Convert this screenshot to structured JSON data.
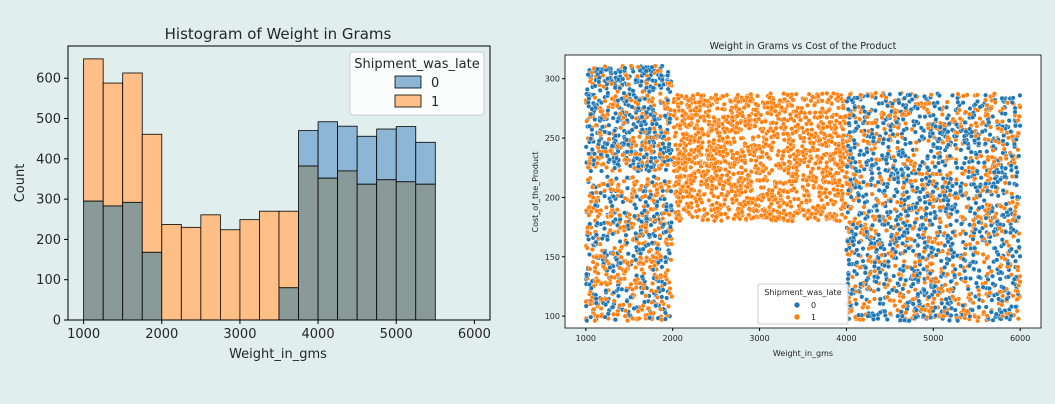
{
  "colors": {
    "class0": "#1f77b4",
    "class1": "#ff7f0e",
    "hist_class0_fill": "#8db5d6",
    "hist_class1_fill": "#ffbf86",
    "hist_overlap_fill": "#8a9a99",
    "background": "#e0eeee"
  },
  "chart_data": [
    {
      "type": "bar",
      "subtype": "histogram-overlaid",
      "title": "Histogram of Weight in Grams",
      "xlabel": "Weight_in_gms",
      "ylabel": "Count",
      "xlim": [
        800,
        6200
      ],
      "ylim": [
        0,
        680
      ],
      "xticks": [
        1000,
        2000,
        3000,
        4000,
        5000,
        6000
      ],
      "yticks": [
        0,
        100,
        200,
        300,
        400,
        500,
        600
      ],
      "legend": {
        "title": "Shipment_was_late",
        "entries": [
          "0",
          "1"
        ],
        "position": "upper-right"
      },
      "bin_edges": [
        1000,
        1250,
        1500,
        1750,
        2000,
        2250,
        2500,
        2750,
        3000,
        3250,
        3500,
        3750,
        4000,
        4250,
        4500,
        4750,
        5000,
        5250,
        5500,
        5750,
        6000
      ],
      "series": [
        {
          "name": "0",
          "values": [
            295,
            283,
            292,
            168,
            0,
            0,
            0,
            0,
            0,
            0,
            80,
            470,
            492,
            481,
            456,
            474,
            480,
            441,
            0,
            0
          ]
        },
        {
          "name": "1",
          "values": [
            648,
            588,
            613,
            461,
            237,
            230,
            261,
            224,
            249,
            270,
            270,
            382,
            352,
            370,
            337,
            348,
            343,
            337,
            0,
            0
          ]
        }
      ],
      "grid": false
    },
    {
      "type": "scatter",
      "title": "Weight in Grams vs Cost of the Product",
      "xlabel": "Weight_in_gms",
      "ylabel": "Cost_of_the_Product",
      "xlim": [
        760,
        6240
      ],
      "ylim": [
        90,
        320
      ],
      "xticks": [
        1000,
        2000,
        3000,
        4000,
        5000,
        6000
      ],
      "yticks": [
        100,
        150,
        200,
        250,
        300
      ],
      "legend": {
        "title": "Shipment_was_late",
        "entries": [
          "0",
          "1"
        ],
        "position": "lower-center"
      },
      "grid": false,
      "clusters": [
        {
          "x": [
            1000,
            1990
          ],
          "y": [
            96,
            218
          ],
          "n0": 300,
          "n1": 400
        },
        {
          "x": [
            1000,
            1990
          ],
          "y": [
            222,
            311
          ],
          "n0": 400,
          "n1": 250
        },
        {
          "x": [
            2010,
            3990
          ],
          "y": [
            180,
            288
          ],
          "n0": 0,
          "n1": 1400
        },
        {
          "x": [
            4000,
            6000
          ],
          "y": [
            96,
            288
          ],
          "n0": 1200,
          "n1": 850
        }
      ]
    }
  ]
}
